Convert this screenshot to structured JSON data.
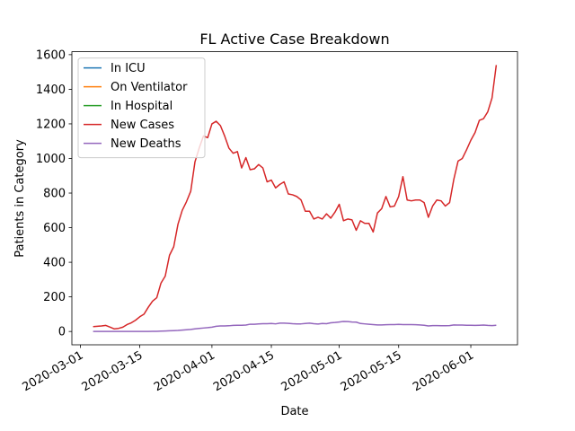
{
  "chart_data": {
    "type": "line",
    "title": "FL Active Case Breakdown",
    "xlabel": "Date",
    "ylabel": "Patients in Category",
    "x": [
      "2020-03-04",
      "2020-03-05",
      "2020-03-06",
      "2020-03-07",
      "2020-03-08",
      "2020-03-09",
      "2020-03-10",
      "2020-03-11",
      "2020-03-12",
      "2020-03-13",
      "2020-03-14",
      "2020-03-15",
      "2020-03-16",
      "2020-03-17",
      "2020-03-18",
      "2020-03-19",
      "2020-03-20",
      "2020-03-21",
      "2020-03-22",
      "2020-03-23",
      "2020-03-24",
      "2020-03-25",
      "2020-03-26",
      "2020-03-27",
      "2020-03-28",
      "2020-03-29",
      "2020-03-30",
      "2020-03-31",
      "2020-04-01",
      "2020-04-02",
      "2020-04-03",
      "2020-04-04",
      "2020-04-05",
      "2020-04-06",
      "2020-04-07",
      "2020-04-08",
      "2020-04-09",
      "2020-04-10",
      "2020-04-11",
      "2020-04-12",
      "2020-04-13",
      "2020-04-14",
      "2020-04-15",
      "2020-04-16",
      "2020-04-17",
      "2020-04-18",
      "2020-04-19",
      "2020-04-20",
      "2020-04-21",
      "2020-04-22",
      "2020-04-23",
      "2020-04-24",
      "2020-04-25",
      "2020-04-26",
      "2020-04-27",
      "2020-04-28",
      "2020-04-29",
      "2020-04-30",
      "2020-05-01",
      "2020-05-02",
      "2020-05-03",
      "2020-05-04",
      "2020-05-05",
      "2020-05-06",
      "2020-05-07",
      "2020-05-08",
      "2020-05-09",
      "2020-05-10",
      "2020-05-11",
      "2020-05-12",
      "2020-05-13",
      "2020-05-14",
      "2020-05-15",
      "2020-05-16",
      "2020-05-17",
      "2020-05-18",
      "2020-05-19",
      "2020-05-20",
      "2020-05-21",
      "2020-05-22",
      "2020-05-23",
      "2020-05-24",
      "2020-05-25",
      "2020-05-26",
      "2020-05-27",
      "2020-05-28",
      "2020-05-29",
      "2020-05-30",
      "2020-05-31",
      "2020-06-01",
      "2020-06-02",
      "2020-06-03",
      "2020-06-04",
      "2020-06-05",
      "2020-06-06",
      "2020-06-07"
    ],
    "series": [
      {
        "name": "In ICU",
        "color": "#1f77b4",
        "values": [
          null,
          null,
          null,
          null,
          null,
          null,
          null,
          null,
          null,
          null,
          null,
          null,
          null,
          null,
          null,
          null,
          null,
          null,
          null,
          null,
          null,
          null,
          null,
          null,
          null,
          null,
          null,
          null,
          null,
          null,
          null,
          null,
          null,
          null,
          null,
          null,
          null,
          null,
          null,
          null,
          null,
          null,
          null,
          null,
          null,
          null,
          null,
          null,
          null,
          null,
          null,
          null,
          null,
          null,
          null,
          null,
          null,
          null,
          null,
          null,
          null,
          null,
          null,
          null,
          null,
          null,
          null,
          null,
          null,
          null,
          null,
          null,
          null,
          null,
          null,
          null,
          null,
          null,
          null,
          null,
          null,
          null,
          null,
          null,
          null,
          null,
          null,
          null,
          null,
          null,
          null,
          null,
          null,
          null,
          null,
          null
        ]
      },
      {
        "name": "On Ventilator",
        "color": "#ff7f0e",
        "values": [
          null,
          null,
          null,
          null,
          null,
          null,
          null,
          null,
          null,
          null,
          null,
          null,
          null,
          null,
          null,
          null,
          null,
          null,
          null,
          null,
          null,
          null,
          null,
          null,
          null,
          null,
          null,
          null,
          null,
          null,
          null,
          null,
          null,
          null,
          null,
          null,
          null,
          null,
          null,
          null,
          null,
          null,
          null,
          null,
          null,
          null,
          null,
          null,
          null,
          null,
          null,
          null,
          null,
          null,
          null,
          null,
          null,
          null,
          null,
          null,
          null,
          null,
          null,
          null,
          null,
          null,
          null,
          null,
          null,
          null,
          null,
          null,
          null,
          null,
          null,
          null,
          null,
          null,
          null,
          null,
          null,
          null,
          null,
          null,
          null,
          null,
          null,
          null,
          null,
          null,
          null,
          null,
          null,
          null,
          null,
          null
        ]
      },
      {
        "name": "In Hospital",
        "color": "#2ca02c",
        "values": [
          null,
          null,
          null,
          null,
          null,
          null,
          null,
          null,
          null,
          null,
          null,
          null,
          null,
          null,
          null,
          null,
          null,
          null,
          null,
          null,
          null,
          null,
          null,
          null,
          null,
          null,
          null,
          null,
          null,
          null,
          null,
          null,
          null,
          null,
          null,
          null,
          null,
          null,
          null,
          null,
          null,
          null,
          null,
          null,
          null,
          null,
          null,
          null,
          null,
          null,
          null,
          null,
          null,
          null,
          null,
          null,
          null,
          null,
          null,
          null,
          null,
          null,
          null,
          null,
          null,
          null,
          null,
          null,
          null,
          null,
          null,
          null,
          null,
          null,
          null,
          null,
          null,
          null,
          null,
          null,
          null,
          null,
          null,
          null,
          null,
          null,
          null,
          null,
          null,
          null,
          null,
          null,
          null,
          null,
          null,
          null
        ]
      },
      {
        "name": "New Cases",
        "color": "#d62728",
        "values": [
          28,
          30,
          32,
          35,
          25,
          15,
          18,
          25,
          40,
          50,
          65,
          85,
          100,
          140,
          175,
          195,
          280,
          320,
          440,
          490,
          620,
          700,
          750,
          810,
          980,
          1060,
          1130,
          1120,
          1200,
          1215,
          1190,
          1130,
          1060,
          1030,
          1040,
          945,
          1005,
          935,
          940,
          965,
          945,
          865,
          875,
          830,
          850,
          865,
          795,
          790,
          780,
          760,
          695,
          695,
          650,
          660,
          650,
          680,
          655,
          690,
          735,
          640,
          650,
          645,
          585,
          640,
          625,
          625,
          575,
          685,
          710,
          780,
          720,
          725,
          780,
          895,
          760,
          755,
          760,
          760,
          745,
          660,
          725,
          760,
          755,
          725,
          745,
          880,
          985,
          1000,
          1050,
          1105,
          1150,
          1220,
          1230,
          1270,
          1350,
          1540
        ]
      },
      {
        "name": "New Deaths",
        "color": "#9467bd",
        "values": [
          0,
          0,
          0,
          0,
          0,
          0,
          0,
          0,
          0,
          0,
          0,
          0,
          0,
          0,
          1,
          1,
          2,
          3,
          4,
          5,
          6,
          8,
          10,
          12,
          15,
          18,
          20,
          22,
          25,
          30,
          32,
          32,
          33,
          35,
          36,
          36,
          37,
          42,
          42,
          44,
          45,
          45,
          46,
          44,
          48,
          48,
          47,
          45,
          44,
          44,
          46,
          48,
          45,
          43,
          46,
          45,
          50,
          52,
          55,
          58,
          57,
          55,
          54,
          46,
          44,
          42,
          40,
          38,
          38,
          39,
          40,
          40,
          41,
          40,
          40,
          40,
          39,
          38,
          36,
          32,
          34,
          34,
          33,
          33,
          34,
          38,
          37,
          37,
          36,
          36,
          35,
          36,
          37,
          35,
          34,
          36
        ]
      }
    ],
    "xlim": [
      "2020-02-28",
      "2020-06-12"
    ],
    "xticks": [
      "2020-03-01",
      "2020-03-15",
      "2020-04-01",
      "2020-04-15",
      "2020-05-01",
      "2020-05-15",
      "2020-06-01"
    ],
    "ylim": [
      -77,
      1617
    ],
    "yticks": [
      0,
      200,
      400,
      600,
      800,
      1000,
      1200,
      1400,
      1600
    ],
    "legend": "upper left"
  }
}
